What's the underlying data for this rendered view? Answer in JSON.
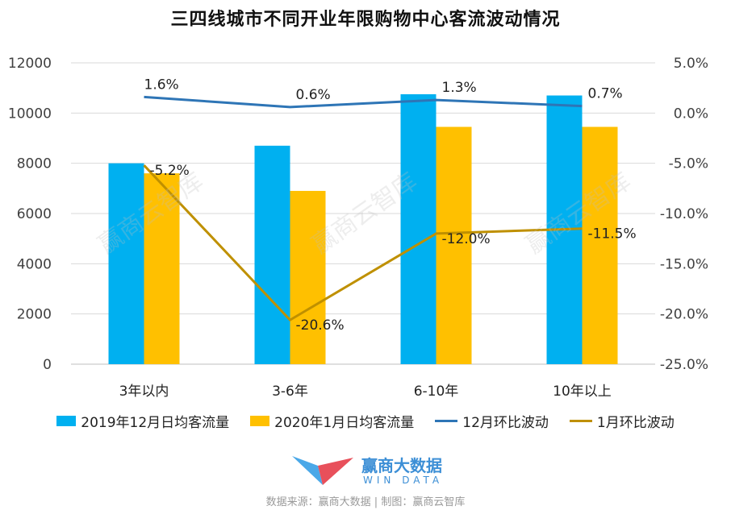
{
  "title": "三四线城市不同开业年限购物中心客流波动情况",
  "watermark": "赢商云智库",
  "legend": [
    {
      "label": "2019年12月日均客流量",
      "type": "box",
      "color": "#00B0F0"
    },
    {
      "label": "2020年1月日均客流量",
      "type": "box",
      "color": "#FFC000"
    },
    {
      "label": "12月环比波动",
      "type": "line",
      "color": "#2E75B6"
    },
    {
      "label": "1月环比波动",
      "type": "line",
      "color": "#BF9000"
    }
  ],
  "logo": {
    "name": "赢商大数据",
    "sub": "WIN DATA"
  },
  "source": "数据来源：赢商大数据 | 制图：赢商云智库",
  "chart_data": {
    "type": "bar",
    "categories": [
      "3年以内",
      "3-6年",
      "6-10年",
      "10年以上"
    ],
    "series": [
      {
        "name": "2019年12月日均客流量",
        "type": "bar",
        "axis": "left",
        "color": "#00B0F0",
        "values": [
          8000,
          8700,
          10750,
          10700
        ]
      },
      {
        "name": "2020年1月日均客流量",
        "type": "bar",
        "axis": "left",
        "color": "#FFC000",
        "values": [
          7600,
          6900,
          9450,
          9450
        ]
      },
      {
        "name": "12月环比波动",
        "type": "line",
        "axis": "right",
        "color": "#2E75B6",
        "values": [
          1.6,
          0.6,
          1.3,
          0.7
        ],
        "labels": [
          "1.6%",
          "0.6%",
          "1.3%",
          "0.7%"
        ]
      },
      {
        "name": "1月环比波动",
        "type": "line",
        "axis": "right",
        "color": "#BF9000",
        "values": [
          -5.2,
          -20.6,
          -12.0,
          -11.5
        ],
        "labels": [
          "-5.2%",
          "-20.6%",
          "-12.0%",
          "-11.5%"
        ]
      }
    ],
    "y_left": {
      "min": 0,
      "max": 12000,
      "ticks": [
        "0",
        "2000",
        "4000",
        "6000",
        "8000",
        "10000",
        "12000"
      ]
    },
    "y_right": {
      "min": -25,
      "max": 5,
      "ticks": [
        "-25.0%",
        "-20.0%",
        "-15.0%",
        "-10.0%",
        "-5.0%",
        "0.0%",
        "5.0%"
      ]
    },
    "grid": true,
    "legend_position": "bottom"
  }
}
